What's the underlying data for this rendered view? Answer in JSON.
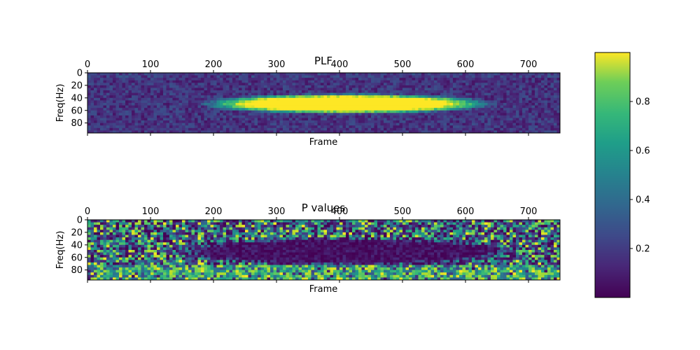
{
  "chart_data": [
    {
      "type": "heatmap",
      "title": "PLF",
      "xlabel": "Frame",
      "ylabel": "Freq(Hz)",
      "x_ticks": [
        0,
        100,
        200,
        300,
        400,
        500,
        600,
        700
      ],
      "y_ticks": [
        0,
        20,
        40,
        60,
        80
      ],
      "xlim": [
        0,
        750
      ],
      "ylim": [
        96,
        0
      ],
      "colormap": "viridis",
      "description_of_values": {
        "background_range": [
          0.05,
          0.3
        ],
        "peak_value": 1.0,
        "peak_frames": [
          235,
          590
        ],
        "peak_freq_hz": [
          37,
          62
        ]
      }
    },
    {
      "type": "heatmap",
      "title": "P values",
      "xlabel": "Frame",
      "ylabel": "Freq(Hz)",
      "x_ticks": [
        0,
        100,
        200,
        300,
        400,
        500,
        600,
        700
      ],
      "y_ticks": [
        0,
        20,
        40,
        60,
        80
      ],
      "xlim": [
        0,
        750
      ],
      "ylim": [
        96,
        0
      ],
      "colormap": "viridis",
      "description_of_values": {
        "significant_region_value": 0.0,
        "significant_frames": [
          185,
          630
        ],
        "significant_freq_hz": [
          33,
          68
        ],
        "noise_range": [
          0.0,
          1.0
        ]
      }
    }
  ],
  "colorbar": {
    "ticks": [
      0.2,
      0.4,
      0.6,
      0.8
    ],
    "range": [
      0.0,
      1.0
    ]
  }
}
